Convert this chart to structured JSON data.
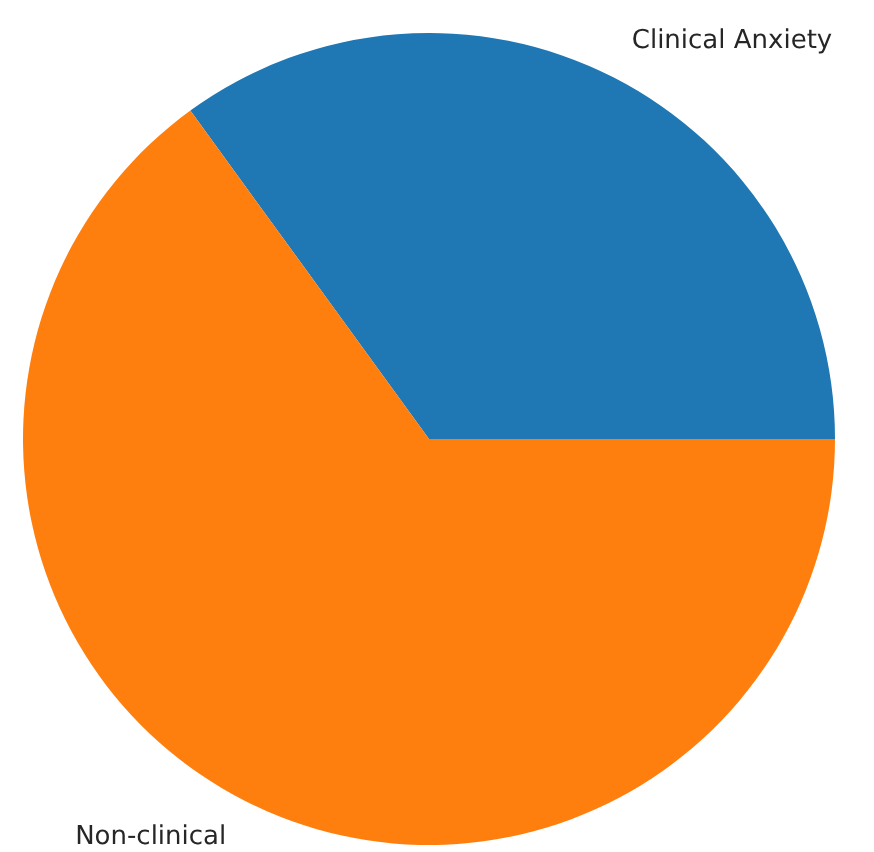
{
  "chart_data": {
    "type": "pie",
    "categories": [
      "Clinical Anxiety",
      "Non-clinical"
    ],
    "values": [
      35,
      65
    ],
    "colors": [
      "#1f77b4",
      "#ff7f0e"
    ]
  }
}
